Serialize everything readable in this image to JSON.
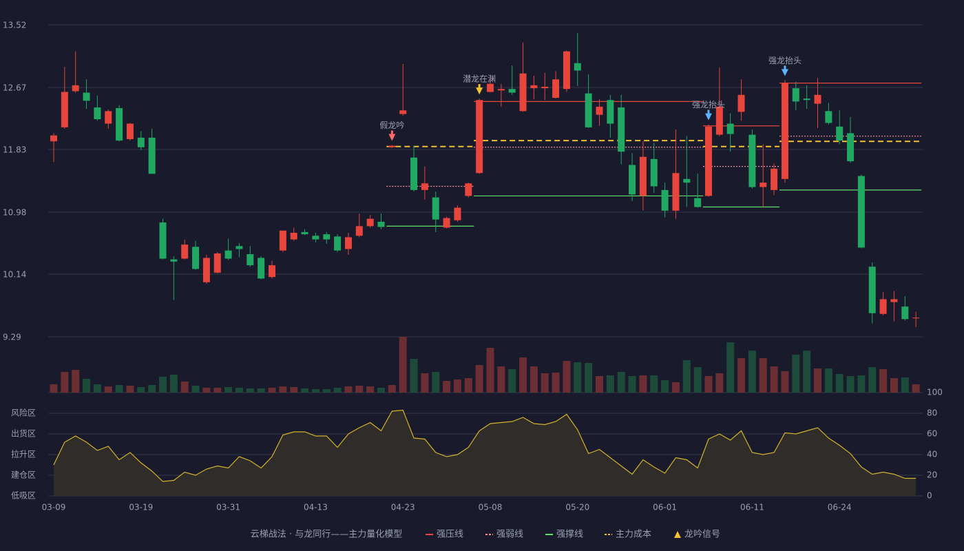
{
  "chart_data": [
    {
      "type": "candlestick",
      "categories": [
        "03-09",
        null,
        null,
        null,
        null,
        null,
        null,
        null,
        "03-19",
        null,
        null,
        null,
        null,
        null,
        null,
        null,
        "03-31",
        null,
        null,
        null,
        null,
        null,
        null,
        null,
        "04-13",
        null,
        null,
        null,
        null,
        null,
        null,
        null,
        "04-23",
        null,
        null,
        null,
        null,
        null,
        null,
        null,
        "05-08",
        null,
        null,
        null,
        null,
        null,
        null,
        null,
        "05-20",
        null,
        null,
        null,
        null,
        null,
        null,
        null,
        "06-01",
        null,
        null,
        null,
        null,
        null,
        null,
        null,
        "06-11",
        null,
        null,
        null,
        null,
        null,
        null,
        null,
        "06-24",
        null,
        null,
        null,
        null,
        null,
        null,
        null
      ],
      "open": [
        11.94,
        12.13,
        12.62,
        12.6,
        12.4,
        12.18,
        12.39,
        11.97,
        11.99,
        11.99,
        10.84,
        10.34,
        10.35,
        10.51,
        10.03,
        10.16,
        10.46,
        10.52,
        10.41,
        10.36,
        10.1,
        10.46,
        10.61,
        10.71,
        10.66,
        10.68,
        10.65,
        10.48,
        10.66,
        10.79,
        10.85,
        11.86,
        12.31,
        11.72,
        11.28,
        11.18,
        10.77,
        10.87,
        11.2,
        11.51,
        12.61,
        12.63,
        12.65,
        12.35,
        12.66,
        12.66,
        12.53,
        12.65,
        13.0,
        12.59,
        12.3,
        12.5,
        12.4,
        11.62,
        11.2,
        11.7,
        11.28,
        11.0,
        11.43,
        11.17,
        11.2,
        12.03,
        12.18,
        12.34,
        12.03,
        11.32,
        11.28,
        11.43,
        12.66,
        12.52,
        12.45,
        12.35,
        12.14,
        12.05,
        11.47,
        10.24,
        9.6,
        9.76,
        9.7,
        9.54
      ],
      "high": [
        12.05,
        12.95,
        13.16,
        12.78,
        12.56,
        12.37,
        12.43,
        12.19,
        12.08,
        12.11,
        10.89,
        10.38,
        10.61,
        10.59,
        10.4,
        10.44,
        10.62,
        10.56,
        10.52,
        10.38,
        10.32,
        10.73,
        10.77,
        10.75,
        10.7,
        10.71,
        10.68,
        10.7,
        10.96,
        10.94,
        10.96,
        11.89,
        12.99,
        11.88,
        11.6,
        11.26,
        10.92,
        11.07,
        11.38,
        12.52,
        12.83,
        12.72,
        12.97,
        13.28,
        12.83,
        12.87,
        12.89,
        13.17,
        13.41,
        12.85,
        12.51,
        12.57,
        12.57,
        11.78,
        11.94,
        11.92,
        11.38,
        12.1,
        12.01,
        11.5,
        12.17,
        12.94,
        12.32,
        12.78,
        12.1,
        11.9,
        11.64,
        12.77,
        12.75,
        12.7,
        12.8,
        12.46,
        12.36,
        12.27,
        11.49,
        10.3,
        9.9,
        9.91,
        9.84,
        9.63
      ],
      "low": [
        11.66,
        12.11,
        12.6,
        12.38,
        12.22,
        12.11,
        11.94,
        11.95,
        11.82,
        11.5,
        10.34,
        9.79,
        10.34,
        10.2,
        10.01,
        10.15,
        10.33,
        10.37,
        10.24,
        10.07,
        10.08,
        10.44,
        10.59,
        10.67,
        10.57,
        10.55,
        10.44,
        10.4,
        10.64,
        10.77,
        10.75,
        11.85,
        12.29,
        11.26,
        11.15,
        10.71,
        10.76,
        10.85,
        11.18,
        11.5,
        12.6,
        12.41,
        12.57,
        12.34,
        12.51,
        12.5,
        12.52,
        12.61,
        12.69,
        12.12,
        12.15,
        11.99,
        11.63,
        11.13,
        11.0,
        11.24,
        10.91,
        10.89,
        11.05,
        11.04,
        11.19,
        12.01,
        11.8,
        12.22,
        11.3,
        11.05,
        11.21,
        11.38,
        12.36,
        12.38,
        12.12,
        12.17,
        11.9,
        11.65,
        10.49,
        9.47,
        9.58,
        9.5,
        9.51,
        9.42
      ],
      "close": [
        12.02,
        12.61,
        12.7,
        12.49,
        12.24,
        12.35,
        11.95,
        12.18,
        11.86,
        11.5,
        10.35,
        10.31,
        10.54,
        10.21,
        10.36,
        10.42,
        10.35,
        10.48,
        10.26,
        10.08,
        10.26,
        10.73,
        10.7,
        10.68,
        10.61,
        10.61,
        10.46,
        10.64,
        10.79,
        10.89,
        10.78,
        11.88,
        12.36,
        11.28,
        11.37,
        10.88,
        10.9,
        11.04,
        11.37,
        12.5,
        12.72,
        12.65,
        12.6,
        12.86,
        12.7,
        12.68,
        12.78,
        13.16,
        12.9,
        12.13,
        12.41,
        12.18,
        11.8,
        11.22,
        11.73,
        11.33,
        11.0,
        11.51,
        11.38,
        11.05,
        12.14,
        12.41,
        12.04,
        12.57,
        11.32,
        11.38,
        11.57,
        12.73,
        12.48,
        12.5,
        12.57,
        12.19,
        11.95,
        11.67,
        10.5,
        9.61,
        9.8,
        9.8,
        9.53,
        9.55
      ],
      "up_color": "#e8453c",
      "down_color": "#21a862",
      "ylim": [
        9.29,
        13.52
      ],
      "yticks": [
        13.52,
        12.67,
        11.83,
        10.98,
        10.14,
        9.29
      ],
      "grid": true,
      "levels": [
        {
          "name": "强压线",
          "color": "#e8453c",
          "style": "solid",
          "segments": [
            {
              "start": 39,
              "end": 59,
              "value": 12.48
            },
            {
              "start": 60,
              "end": 66,
              "value": 12.15
            },
            {
              "start": 67,
              "end": 79,
              "value": 12.73
            }
          ]
        },
        {
          "name": "强弱线",
          "color": "#ff8fa0",
          "style": "dotted",
          "segments": [
            {
              "start": 31,
              "end": 38,
              "value": 11.33
            },
            {
              "start": 39,
              "end": 59,
              "value": 11.86
            },
            {
              "start": 60,
              "end": 66,
              "value": 11.6
            },
            {
              "start": 67,
              "end": 79,
              "value": 12.01
            }
          ]
        },
        {
          "name": "强撑线",
          "color": "#5ee06a",
          "style": "solid",
          "segments": [
            {
              "start": 31,
              "end": 38,
              "value": 10.79
            },
            {
              "start": 39,
              "end": 59,
              "value": 11.2
            },
            {
              "start": 60,
              "end": 66,
              "value": 11.05
            },
            {
              "start": 67,
              "end": 79,
              "value": 11.28
            }
          ]
        },
        {
          "name": "主力成本",
          "color": "#f2c230",
          "style": "dashed",
          "segments": [
            {
              "start": 31,
              "end": 38,
              "value": 11.87
            },
            {
              "start": 39,
              "end": 59,
              "value": 11.95
            },
            {
              "start": 60,
              "end": 66,
              "value": 11.87
            },
            {
              "start": 67,
              "end": 79,
              "value": 11.94
            }
          ]
        }
      ],
      "signals": [
        {
          "label": "假龙吟",
          "index": 31,
          "color": "#ff6b6b"
        },
        {
          "label": "潜龙在渊",
          "index": 39,
          "color": "#f2c230"
        },
        {
          "label": "强龙抬头",
          "index": 60,
          "color": "#5ab4ff"
        },
        {
          "label": "强龙抬头",
          "index": 67,
          "color": "#5ab4ff"
        }
      ],
      "legend_title": "云梯战法 · 与龙同行——主力量化模型",
      "signal_legend": "龙吟信号",
      "signal_legend_color": "#f2c230"
    },
    {
      "type": "volume",
      "values": [
        12,
        30,
        33,
        20,
        12,
        9,
        11,
        10,
        8,
        11,
        23,
        26,
        16,
        10,
        7,
        7,
        8,
        7,
        6,
        6,
        7,
        9,
        8,
        6,
        5,
        5,
        7,
        9,
        10,
        9,
        7,
        11,
        81,
        49,
        28,
        30,
        17,
        19,
        21,
        40,
        65,
        38,
        34,
        51,
        38,
        28,
        29,
        46,
        44,
        43,
        24,
        25,
        30,
        24,
        25,
        25,
        18,
        15,
        47,
        37,
        24,
        28,
        73,
        50,
        61,
        50,
        38,
        31,
        55,
        61,
        35,
        35,
        27,
        24,
        25,
        37,
        34,
        21,
        22,
        12
      ],
      "ylim": [
        0,
        81
      ],
      "up_color": "#6a2e33",
      "down_color": "#1d4b3a"
    },
    {
      "type": "area",
      "values": [
        30,
        52,
        58,
        52,
        44,
        48,
        35,
        42,
        32,
        24,
        14,
        15,
        23,
        20,
        26,
        29,
        27,
        38,
        34,
        27,
        38,
        59,
        62,
        62,
        58,
        58,
        47,
        60,
        66,
        71,
        63,
        82,
        83,
        56,
        55,
        42,
        38,
        40,
        47,
        63,
        70,
        71,
        72,
        76,
        70,
        69,
        72,
        79,
        64,
        41,
        45,
        37,
        29,
        21,
        35,
        28,
        22,
        37,
        35,
        27,
        55,
        60,
        54,
        63,
        42,
        40,
        42,
        61,
        60,
        63,
        66,
        56,
        49,
        41,
        28,
        21,
        23,
        21,
        17,
        17
      ],
      "color": "#d4b428",
      "fill": "#332f2a",
      "ylim": [
        0,
        100
      ],
      "yticks": [
        0,
        20,
        40,
        60,
        80,
        100
      ],
      "ytick_colors": [
        "#e04040",
        "#e89a2a",
        "#4a90e2",
        "#e89a2a",
        "#e89a2a",
        "#3ddc5c"
      ],
      "zones": [
        {
          "label": "风险区",
          "value": 80,
          "color": "#e89a2a"
        },
        {
          "label": "出货区",
          "value": 60,
          "color": "#d04ed8"
        },
        {
          "label": "拉升区",
          "value": 40,
          "color": "#4a90e2"
        },
        {
          "label": "建仓区",
          "value": 20,
          "color": "#e0605a"
        },
        {
          "label": "低吸区",
          "value": 0,
          "color": "#e04040"
        }
      ]
    }
  ]
}
